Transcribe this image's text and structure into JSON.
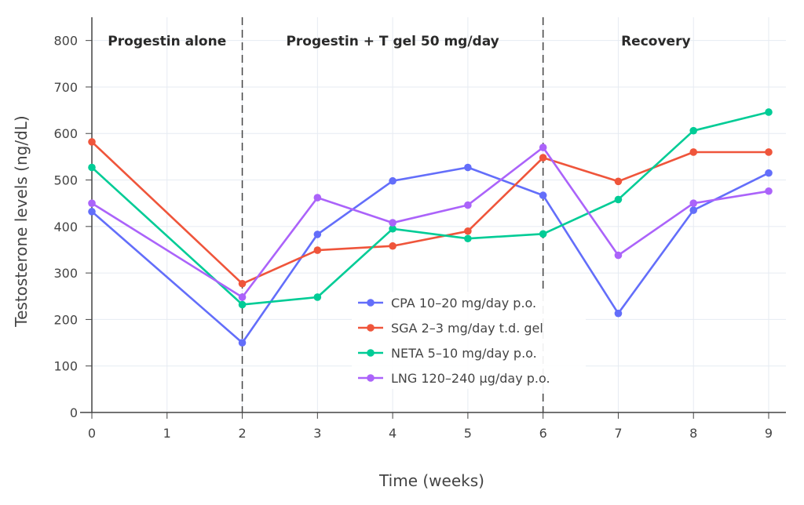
{
  "chart_data": {
    "type": "line",
    "title": "",
    "xlabel": "Time (weeks)",
    "ylabel": "Testosterone levels (ng/dL)",
    "xlim": [
      0,
      9
    ],
    "ylim": [
      0,
      850
    ],
    "x_ticks": [
      0,
      1,
      2,
      3,
      4,
      5,
      6,
      7,
      8,
      9
    ],
    "y_ticks": [
      0,
      100,
      200,
      300,
      400,
      500,
      600,
      700,
      800
    ],
    "grid": true,
    "legend_position": "center",
    "phases": [
      {
        "label": "Progestin alone",
        "start": 0,
        "end": 2
      },
      {
        "label": "Progestin + T gel 50 mg/day",
        "start": 2,
        "end": 6
      },
      {
        "label": "Recovery",
        "start": 6,
        "end": 9
      }
    ],
    "phase_boundaries": [
      2,
      6
    ],
    "x": [
      0,
      2,
      3,
      4,
      5,
      6,
      7,
      8,
      9
    ],
    "series": [
      {
        "name": "CPA 10–20 mg/day p.o.",
        "color": "#636efa",
        "values": [
          432,
          150,
          383,
          498,
          527,
          467,
          213,
          435,
          515
        ]
      },
      {
        "name": "SGA 2–3 mg/day t.d. gel",
        "color": "#ef553b",
        "values": [
          582,
          277,
          349,
          358,
          390,
          548,
          497,
          560,
          560
        ]
      },
      {
        "name": "NETA 5–10 mg/day p.o.",
        "color": "#00cc96",
        "values": [
          527,
          232,
          248,
          395,
          374,
          384,
          458,
          606,
          646
        ]
      },
      {
        "name": "LNG 120–240 µg/day p.o.",
        "color": "#ab63fa",
        "values": [
          450,
          248,
          462,
          408,
          446,
          570,
          338,
          450,
          476
        ]
      }
    ]
  }
}
